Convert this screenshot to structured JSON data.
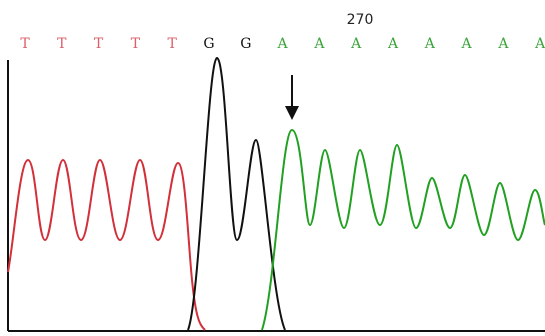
{
  "position_label": "270",
  "bases": [
    {
      "letter": "T",
      "color": "#d9606a"
    },
    {
      "letter": "T",
      "color": "#d9606a"
    },
    {
      "letter": "T",
      "color": "#d9606a"
    },
    {
      "letter": "T",
      "color": "#d9606a"
    },
    {
      "letter": "T",
      "color": "#d9606a"
    },
    {
      "letter": "G",
      "color": "#111111"
    },
    {
      "letter": "G",
      "color": "#111111"
    },
    {
      "letter": "A",
      "color": "#3aa33a"
    },
    {
      "letter": "A",
      "color": "#3aa33a"
    },
    {
      "letter": "A",
      "color": "#3aa33a"
    },
    {
      "letter": "A",
      "color": "#3aa33a"
    },
    {
      "letter": "A",
      "color": "#3aa33a"
    },
    {
      "letter": "A",
      "color": "#3aa33a"
    },
    {
      "letter": "A",
      "color": "#3aa33a"
    },
    {
      "letter": "A",
      "color": "#3aa33a"
    }
  ]
}
